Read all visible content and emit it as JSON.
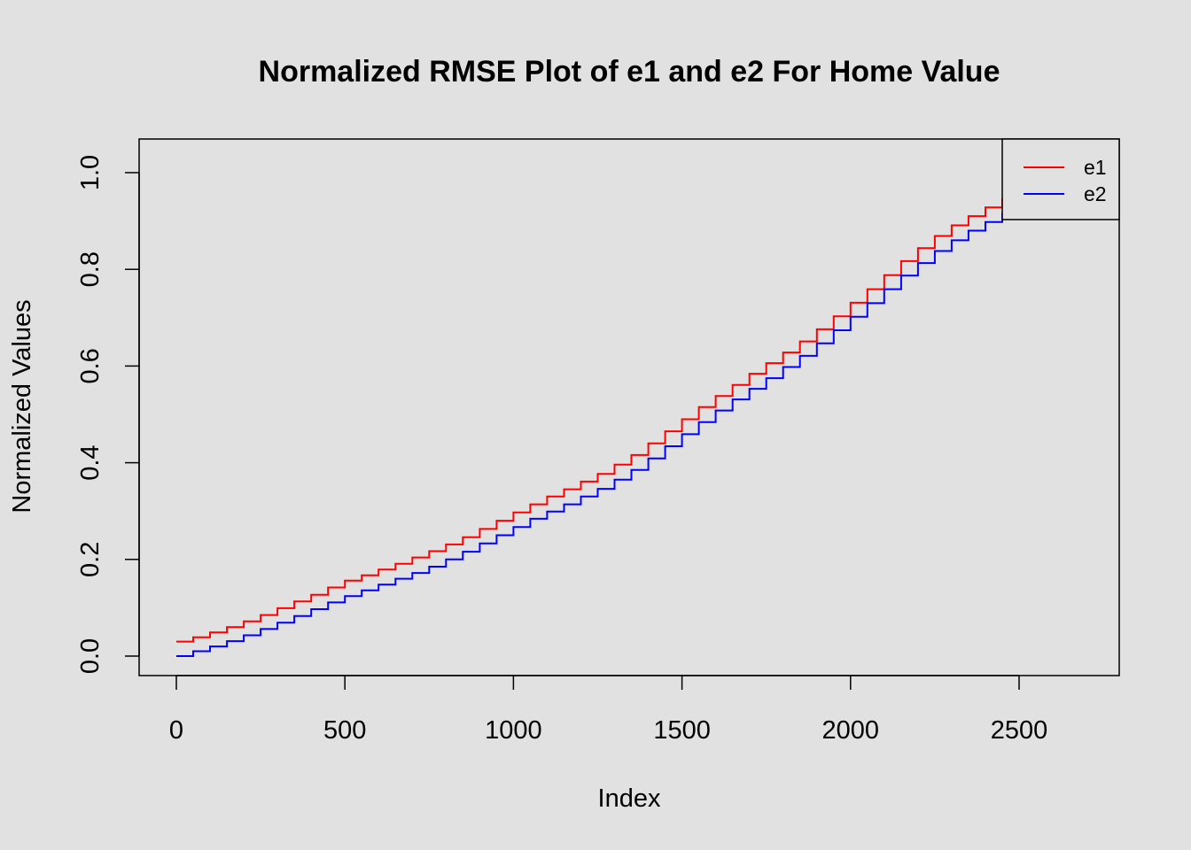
{
  "chart_data": {
    "type": "line",
    "title": "Normalized RMSE Plot of e1 and e2 For Home Value",
    "xlabel": "Index",
    "ylabel": "Normalized Values",
    "xlim": [
      0,
      2800
    ],
    "ylim": [
      0,
      1.0
    ],
    "x_ticks": [
      0,
      500,
      1000,
      1500,
      2000,
      2500
    ],
    "x_tick_labels": [
      "0",
      "500",
      "1000",
      "1500",
      "2000",
      "2500"
    ],
    "y_ticks": [
      0,
      0.2,
      0.4,
      0.6,
      0.8,
      1.0
    ],
    "y_tick_labels": [
      "0.0",
      "0.2",
      "0.4",
      "0.6",
      "0.8",
      "1.0"
    ],
    "grid": false,
    "legend_position": "top-right",
    "series": [
      {
        "name": "e1",
        "color": "#ff0000",
        "step": true,
        "x": [
          0,
          50,
          100,
          150,
          200,
          250,
          300,
          350,
          400,
          450,
          500,
          550,
          600,
          650,
          700,
          750,
          800,
          850,
          900,
          950,
          1000,
          1050,
          1100,
          1150,
          1200,
          1250,
          1300,
          1350,
          1400,
          1450,
          1500,
          1550,
          1600,
          1650,
          1700,
          1750,
          1800,
          1850,
          1900,
          1950,
          2000,
          2050,
          2100,
          2150,
          2200,
          2250,
          2300,
          2350,
          2400,
          2450
        ],
        "values": [
          0.03,
          0.039,
          0.049,
          0.06,
          0.072,
          0.085,
          0.099,
          0.113,
          0.127,
          0.142,
          0.156,
          0.167,
          0.179,
          0.191,
          0.204,
          0.217,
          0.231,
          0.246,
          0.263,
          0.28,
          0.297,
          0.314,
          0.33,
          0.345,
          0.361,
          0.377,
          0.396,
          0.416,
          0.44,
          0.465,
          0.49,
          0.515,
          0.538,
          0.561,
          0.584,
          0.606,
          0.628,
          0.651,
          0.676,
          0.703,
          0.731,
          0.759,
          0.788,
          0.817,
          0.844,
          0.869,
          0.891,
          0.91,
          0.928,
          0.945
        ]
      },
      {
        "name": "e2",
        "color": "#0000ff",
        "step": true,
        "x": [
          0,
          50,
          100,
          150,
          200,
          250,
          300,
          350,
          400,
          450,
          500,
          550,
          600,
          650,
          700,
          750,
          800,
          850,
          900,
          950,
          1000,
          1050,
          1100,
          1150,
          1200,
          1250,
          1300,
          1350,
          1400,
          1450,
          1500,
          1550,
          1600,
          1650,
          1700,
          1750,
          1800,
          1850,
          1900,
          1950,
          2000,
          2050,
          2100,
          2150,
          2200,
          2250,
          2300,
          2350,
          2400,
          2450
        ],
        "values": [
          0.0,
          0.01,
          0.02,
          0.031,
          0.043,
          0.056,
          0.069,
          0.083,
          0.097,
          0.111,
          0.124,
          0.136,
          0.148,
          0.16,
          0.172,
          0.185,
          0.2,
          0.216,
          0.233,
          0.25,
          0.267,
          0.284,
          0.299,
          0.314,
          0.33,
          0.346,
          0.365,
          0.385,
          0.409,
          0.434,
          0.459,
          0.484,
          0.508,
          0.531,
          0.553,
          0.575,
          0.598,
          0.621,
          0.647,
          0.674,
          0.702,
          0.73,
          0.759,
          0.787,
          0.813,
          0.838,
          0.86,
          0.88,
          0.898,
          0.915
        ]
      }
    ]
  }
}
